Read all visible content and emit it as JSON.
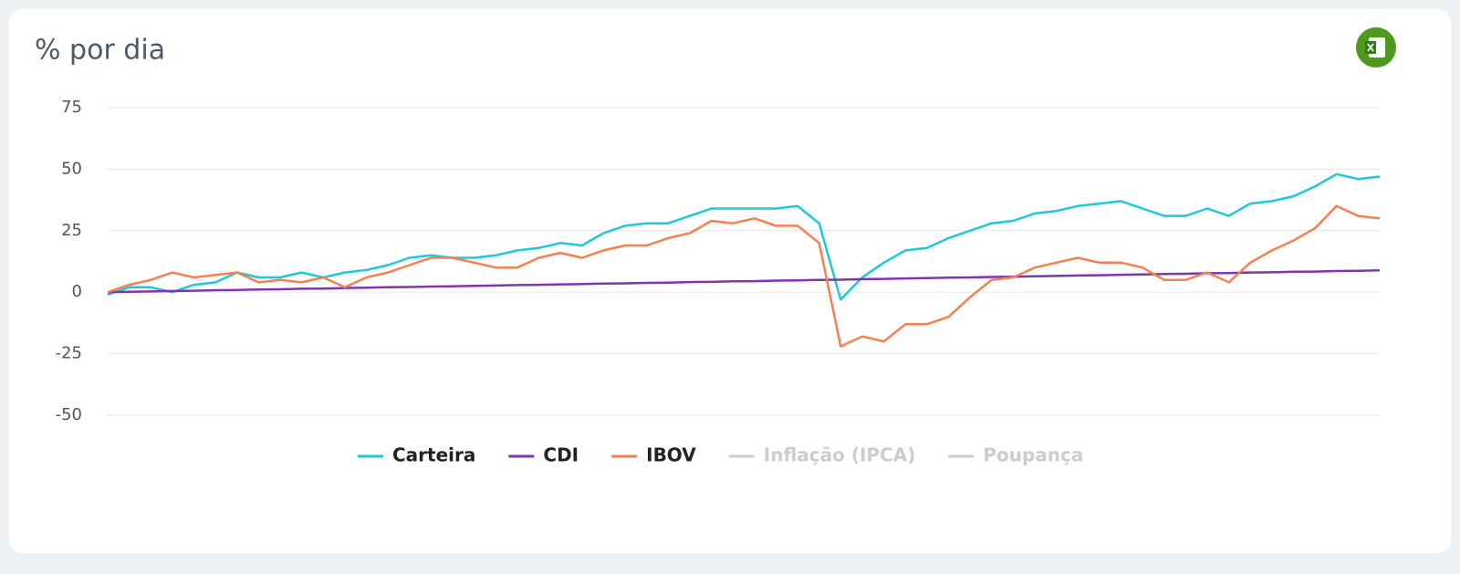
{
  "chart_data": {
    "type": "line",
    "title": "% por dia",
    "ylim": [
      -50,
      75
    ],
    "yticks": [
      -50,
      -25,
      0,
      25,
      50,
      75
    ],
    "grid": true,
    "series": [
      {
        "name": "Carteira",
        "color": "#1ec8d8",
        "visible": true,
        "values": [
          -1,
          2,
          2,
          0,
          3,
          4,
          8,
          6,
          6,
          8,
          6,
          8,
          9,
          11,
          14,
          15,
          14,
          14,
          15,
          17,
          18,
          20,
          19,
          24,
          27,
          28,
          28,
          31,
          34,
          34,
          34,
          34,
          35,
          28,
          -3,
          6,
          12,
          17,
          18,
          22,
          25,
          28,
          29,
          32,
          33,
          35,
          36,
          37,
          34,
          31,
          31,
          34,
          31,
          36,
          37,
          39,
          43,
          48,
          46,
          47
        ]
      },
      {
        "name": "CDI",
        "color": "#7f35b2",
        "visible": true,
        "values": [
          0,
          0.2,
          0.3,
          0.5,
          0.6,
          0.8,
          0.9,
          1.1,
          1.2,
          1.4,
          1.5,
          1.7,
          1.8,
          2,
          2.1,
          2.3,
          2.4,
          2.6,
          2.7,
          2.9,
          3,
          3.2,
          3.3,
          3.5,
          3.6,
          3.8,
          3.9,
          4.1,
          4.2,
          4.4,
          4.5,
          4.7,
          4.8,
          5,
          5.1,
          5.3,
          5.4,
          5.6,
          5.7,
          5.9,
          6,
          6.2,
          6.3,
          6.5,
          6.6,
          6.8,
          6.9,
          7.1,
          7.2,
          7.4,
          7.5,
          7.7,
          7.8,
          8,
          8.1,
          8.3,
          8.4,
          8.6,
          8.7,
          8.9
        ]
      },
      {
        "name": "IBOV",
        "color": "#f77f50",
        "visible": true,
        "values": [
          0,
          3,
          5,
          8,
          6,
          7,
          8,
          4,
          5,
          4,
          6,
          2,
          6,
          8,
          11,
          14,
          14,
          12,
          10,
          10,
          14,
          16,
          14,
          17,
          19,
          19,
          22,
          24,
          29,
          28,
          30,
          27,
          27,
          20,
          -22,
          -18,
          -20,
          -13,
          -13,
          -10,
          -2,
          5,
          6,
          10,
          12,
          14,
          12,
          12,
          10,
          5,
          5,
          8,
          4,
          12,
          17,
          21,
          26,
          35,
          31,
          30
        ]
      },
      {
        "name": "Inflação (IPCA)",
        "color": "#cccccc",
        "visible": false
      },
      {
        "name": "Poupança",
        "color": "#cccccc",
        "visible": false
      }
    ]
  }
}
